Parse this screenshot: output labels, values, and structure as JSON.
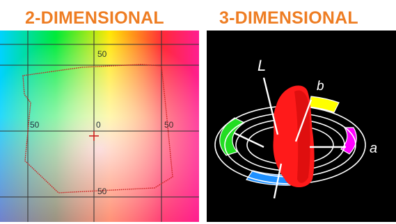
{
  "headings": {
    "left": "2-DIMENSIONAL",
    "right": "3-DIMENSIONAL",
    "color": "#ee7d23"
  },
  "diagram_2d": {
    "plane_colors": [
      "#00d2ff",
      "#00ea3a",
      "#ffe800",
      "#ff2a3a",
      "#ff1e90",
      "#ffffff"
    ],
    "grid_color": "#333333",
    "gamut_outline_color": "#cc1f1f",
    "labels": {
      "top": "50",
      "left": "50",
      "center": "0",
      "right": "50",
      "bottom": "50"
    }
  },
  "diagram_3d": {
    "background": "#000000",
    "ring_color": "#ffffff",
    "solid_color": "#ff1a1a",
    "ring_segment_colors": {
      "yellow": "#ffff00",
      "magenta": "#ff00ff",
      "blue": "#1e90ff",
      "green": "#22dd22"
    },
    "axis_labels": {
      "lightness": "L",
      "b_axis": "b",
      "a_axis": "a"
    }
  }
}
